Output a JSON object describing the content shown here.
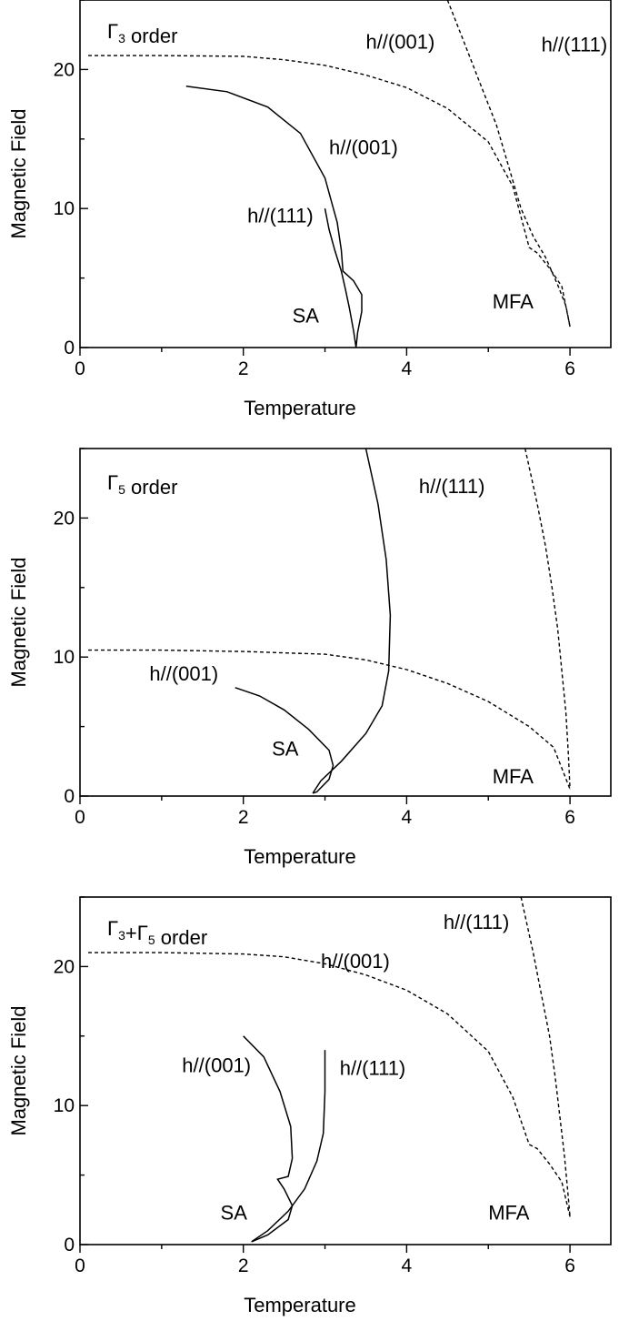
{
  "chart_data": [
    {
      "type": "line",
      "title": "Γ3 order",
      "title_parts": [
        {
          "t": "Γ",
          "sub": false
        },
        {
          "t": "3",
          "sub": true
        },
        {
          "t": " order",
          "sub": false
        }
      ],
      "xlabel": "Temperature",
      "ylabel": "Magnetic Field",
      "xlim": [
        0,
        6.5
      ],
      "ylim": [
        0,
        25
      ],
      "xticks": [
        0,
        2,
        4,
        6
      ],
      "yticks": [
        0,
        10,
        20
      ],
      "grid": false,
      "series": [
        {
          "style": "dashed",
          "label": "h//(001)",
          "points": [
            [
              0.1,
              21
            ],
            [
              1,
              21
            ],
            [
              2,
              20.95
            ],
            [
              2.5,
              20.7
            ],
            [
              3,
              20.3
            ],
            [
              3.5,
              19.6
            ],
            [
              4,
              18.7
            ],
            [
              4.5,
              17.2
            ],
            [
              5,
              14.8
            ],
            [
              5.3,
              11.6
            ],
            [
              5.5,
              7.2
            ],
            [
              5.6,
              6.8
            ],
            [
              5.75,
              5.7
            ],
            [
              5.9,
              4.4
            ],
            [
              6,
              1.5
            ]
          ]
        },
        {
          "style": "dashed",
          "label": "h//(111)",
          "points": [
            [
              4.5,
              25
            ],
            [
              4.7,
              22
            ],
            [
              4.9,
              19
            ],
            [
              5.1,
              16
            ],
            [
              5.25,
              13
            ],
            [
              5.4,
              10
            ],
            [
              5.55,
              8
            ],
            [
              5.7,
              6.5
            ],
            [
              5.85,
              4.5
            ],
            [
              5.95,
              3
            ],
            [
              6,
              1.5
            ]
          ]
        },
        {
          "style": "solid",
          "label": "h//(001)",
          "points": [
            [
              1.3,
              18.8
            ],
            [
              1.8,
              18.4
            ],
            [
              2.3,
              17.3
            ],
            [
              2.7,
              15.4
            ],
            [
              3,
              12.2
            ],
            [
              3.15,
              9
            ],
            [
              3.2,
              7
            ],
            [
              3.22,
              5.5
            ],
            [
              3.35,
              4.8
            ],
            [
              3.45,
              3.8
            ],
            [
              3.45,
              2.6
            ],
            [
              3.4,
              1.1
            ],
            [
              3.38,
              0
            ]
          ]
        },
        {
          "style": "solid",
          "label": "h//(111)",
          "points": [
            [
              3,
              10
            ],
            [
              3.05,
              8.5
            ],
            [
              3.12,
              7
            ],
            [
              3.2,
              5.5
            ],
            [
              3.25,
              4.2
            ],
            [
              3.3,
              2.8
            ],
            [
              3.35,
              1.2
            ],
            [
              3.38,
              0
            ]
          ]
        }
      ],
      "annotations": [
        {
          "text": "h//(001)",
          "x": 3.5,
          "y": 21.5
        },
        {
          "text": "h//(111)",
          "x": 5.65,
          "y": 21.3
        },
        {
          "text": "h//(001)",
          "x": 3.05,
          "y": 13.9
        },
        {
          "text": "h//(111)",
          "x": 2.05,
          "y": 9.0
        },
        {
          "text": "SA",
          "x": 2.6,
          "y": 1.8
        },
        {
          "text": "MFA",
          "x": 5.05,
          "y": 2.8
        }
      ]
    },
    {
      "type": "line",
      "title": "Γ5 order",
      "title_parts": [
        {
          "t": "Γ",
          "sub": false
        },
        {
          "t": "5",
          "sub": true
        },
        {
          "t": " order",
          "sub": false
        }
      ],
      "xlabel": "Temperature",
      "ylabel": "Magnetic Field",
      "xlim": [
        0,
        6.5
      ],
      "ylim": [
        0,
        25
      ],
      "xticks": [
        0,
        2,
        4,
        6
      ],
      "yticks": [
        0,
        10,
        20
      ],
      "grid": false,
      "series": [
        {
          "style": "dashed",
          "label": "h//(001)",
          "points": [
            [
              0.1,
              10.5
            ],
            [
              1,
              10.5
            ],
            [
              2,
              10.4
            ],
            [
              3,
              10.2
            ],
            [
              3.5,
              9.8
            ],
            [
              4,
              9.1
            ],
            [
              4.5,
              8.1
            ],
            [
              5,
              6.8
            ],
            [
              5.5,
              5
            ],
            [
              5.8,
              3.5
            ],
            [
              6,
              0.5
            ]
          ]
        },
        {
          "style": "dashed",
          "label": "h//(111)",
          "points": [
            [
              5.45,
              25
            ],
            [
              5.6,
              21
            ],
            [
              5.7,
              18
            ],
            [
              5.78,
              15
            ],
            [
              5.85,
              12
            ],
            [
              5.9,
              9
            ],
            [
              5.95,
              6
            ],
            [
              5.98,
              3
            ],
            [
              6,
              0.5
            ]
          ]
        },
        {
          "style": "solid",
          "label": "h//(111)",
          "points": [
            [
              3.5,
              25
            ],
            [
              3.65,
              21
            ],
            [
              3.75,
              17
            ],
            [
              3.8,
              13
            ],
            [
              3.78,
              9
            ],
            [
              3.7,
              6.5
            ],
            [
              3.5,
              4.5
            ],
            [
              3.2,
              2.5
            ],
            [
              2.95,
              1.1
            ],
            [
              2.85,
              0.2
            ]
          ]
        },
        {
          "style": "solid",
          "label": "h//(001)",
          "points": [
            [
              1.9,
              7.8
            ],
            [
              2.2,
              7.2
            ],
            [
              2.5,
              6.2
            ],
            [
              2.8,
              4.8
            ],
            [
              3.05,
              3.3
            ],
            [
              3.1,
              2.2
            ],
            [
              3.05,
              1.2
            ],
            [
              2.9,
              0.3
            ],
            [
              2.85,
              0.2
            ]
          ]
        }
      ],
      "annotations": [
        {
          "text": "h//(111)",
          "x": 4.15,
          "y": 21.8
        },
        {
          "text": "h//(001)",
          "x": 0.85,
          "y": 8.3
        },
        {
          "text": "SA",
          "x": 2.35,
          "y": 2.9
        },
        {
          "text": "MFA",
          "x": 5.05,
          "y": 0.9
        }
      ]
    },
    {
      "type": "line",
      "title": "Γ3+Γ5 order",
      "title_parts": [
        {
          "t": "Γ",
          "sub": false
        },
        {
          "t": "3",
          "sub": true
        },
        {
          "t": "+Γ",
          "sub": false
        },
        {
          "t": "5",
          "sub": true
        },
        {
          "t": " order",
          "sub": false
        }
      ],
      "xlabel": "Temperature",
      "ylabel": "Magnetic Field",
      "xlim": [
        0,
        6.5
      ],
      "ylim": [
        0,
        25
      ],
      "xticks": [
        0,
        2,
        4,
        6
      ],
      "yticks": [
        0,
        10,
        20
      ],
      "grid": false,
      "series": [
        {
          "style": "dashed",
          "label": "h//(001)",
          "points": [
            [
              0.1,
              21
            ],
            [
              1,
              21
            ],
            [
              2,
              20.9
            ],
            [
              2.5,
              20.7
            ],
            [
              3,
              20.2
            ],
            [
              3.5,
              19.4
            ],
            [
              4,
              18.3
            ],
            [
              4.5,
              16.6
            ],
            [
              5,
              13.9
            ],
            [
              5.3,
              10.6
            ],
            [
              5.5,
              7.2
            ],
            [
              5.6,
              6.9
            ],
            [
              5.75,
              5.8
            ],
            [
              5.9,
              4.5
            ],
            [
              6,
              2
            ]
          ]
        },
        {
          "style": "dashed",
          "label": "h//(111)",
          "points": [
            [
              5.4,
              25
            ],
            [
              5.55,
              21
            ],
            [
              5.65,
              18
            ],
            [
              5.75,
              15
            ],
            [
              5.82,
              12
            ],
            [
              5.88,
              9
            ],
            [
              5.93,
              6.5
            ],
            [
              5.97,
              4
            ],
            [
              6,
              2
            ]
          ]
        },
        {
          "style": "solid",
          "label": "h//(001)",
          "points": [
            [
              2,
              15
            ],
            [
              2.25,
              13.5
            ],
            [
              2.45,
              11
            ],
            [
              2.58,
              8.5
            ],
            [
              2.6,
              6.2
            ],
            [
              2.55,
              4.9
            ],
            [
              2.42,
              4.7
            ],
            [
              2.5,
              4
            ],
            [
              2.6,
              2.8
            ],
            [
              2.55,
              1.8
            ],
            [
              2.3,
              0.7
            ],
            [
              2.1,
              0.2
            ]
          ]
        },
        {
          "style": "solid",
          "label": "h//(111)",
          "points": [
            [
              3,
              14
            ],
            [
              3,
              11
            ],
            [
              2.98,
              8
            ],
            [
              2.9,
              6
            ],
            [
              2.75,
              4
            ],
            [
              2.55,
              2.4
            ],
            [
              2.3,
              1
            ],
            [
              2.1,
              0.2
            ]
          ]
        }
      ],
      "annotations": [
        {
          "text": "h//(111)",
          "x": 4.45,
          "y": 22.7
        },
        {
          "text": "h//(001)",
          "x": 2.95,
          "y": 19.9
        },
        {
          "text": "h//(001)",
          "x": 1.25,
          "y": 12.4
        },
        {
          "text": "h//(111)",
          "x": 3.18,
          "y": 12.2
        },
        {
          "text": "SA",
          "x": 1.72,
          "y": 1.8
        },
        {
          "text": "MFA",
          "x": 5.0,
          "y": 1.8
        }
      ]
    }
  ]
}
